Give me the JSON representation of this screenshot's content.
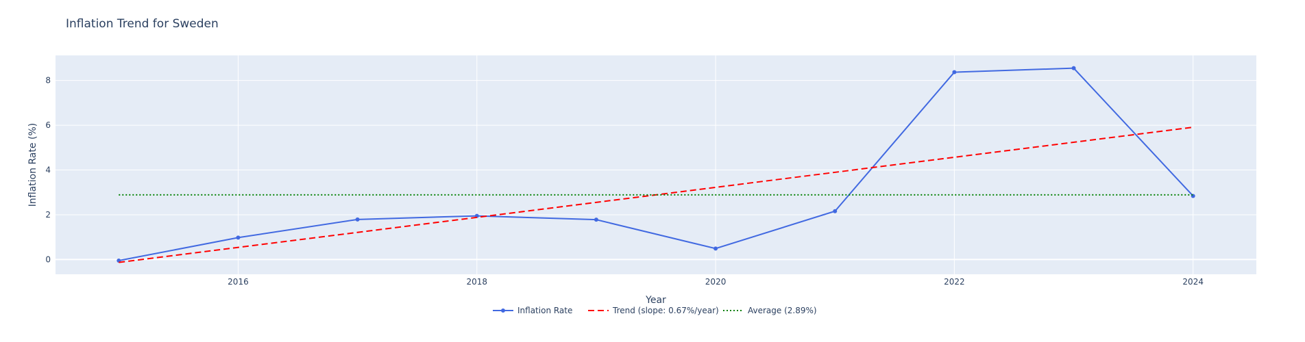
{
  "chart_data": {
    "type": "line",
    "title": "Inflation Trend for Sweden",
    "xlabel": "Year",
    "ylabel": "Inflation Rate (%)",
    "xlim": [
      2014.47,
      2024.53
    ],
    "ylim": [
      -0.66,
      9.12
    ],
    "x_ticks": [
      2016,
      2018,
      2020,
      2022,
      2024
    ],
    "y_ticks": [
      0,
      2,
      4,
      6,
      8
    ],
    "grid": true,
    "legend_position": "bottom",
    "colors": {
      "plot_bg": "#e5ecf6",
      "grid": "#ffffff",
      "text": "#2a3f5f"
    },
    "series": [
      {
        "name": "Inflation Rate",
        "mode": "lines+markers",
        "color": "#4169e1",
        "dash": "solid",
        "x": [
          2015,
          2016,
          2017,
          2018,
          2019,
          2020,
          2021,
          2022,
          2023,
          2024
        ],
        "y": [
          -0.05,
          0.98,
          1.79,
          1.95,
          1.78,
          0.49,
          2.16,
          8.37,
          8.55,
          2.84
        ]
      },
      {
        "name": "Trend (slope: 0.67%/year)",
        "mode": "lines",
        "color": "#ff0000",
        "dash": "dash",
        "x": [
          2015,
          2024
        ],
        "y": [
          -0.13,
          5.91
        ]
      },
      {
        "name": "Average (2.89%)",
        "mode": "lines",
        "color": "#008000",
        "dash": "dot",
        "x": [
          2015,
          2024
        ],
        "y": [
          2.89,
          2.89
        ]
      }
    ]
  }
}
